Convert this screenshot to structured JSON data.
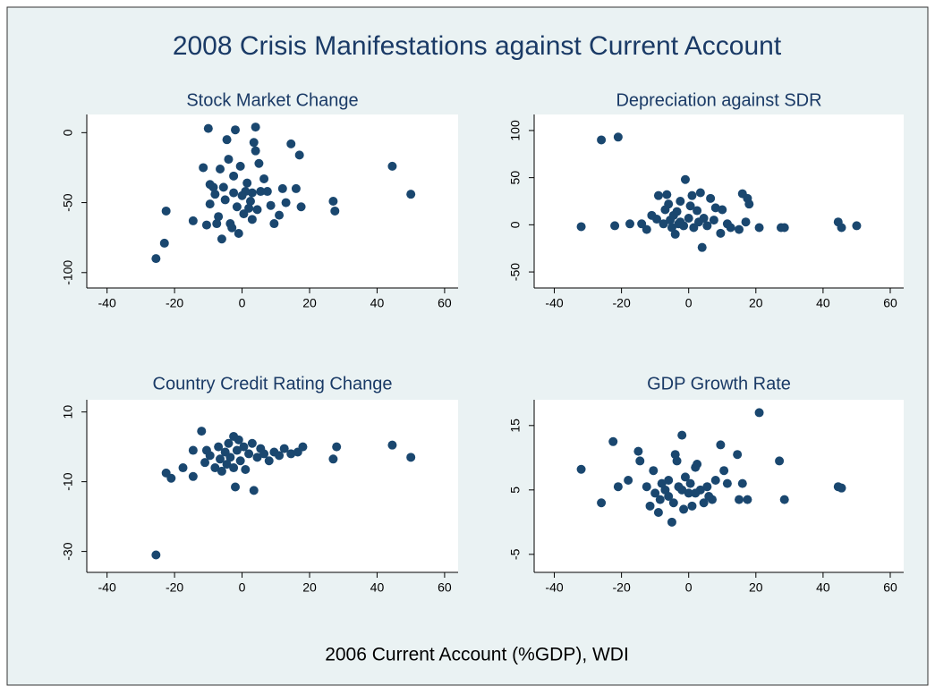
{
  "title": "2008 Crisis Manifestations against Current Account",
  "xlabel": "2006 Current Account (%GDP), WDI",
  "chart_data": [
    {
      "type": "scatter",
      "title": "Stock Market Change",
      "color": "#1a476f",
      "xlim": [
        -46,
        64
      ],
      "ylim": [
        -111,
        13
      ],
      "xticks": [
        -40,
        -20,
        0,
        20,
        40,
        60
      ],
      "yticks": [
        0,
        -50,
        -100
      ],
      "x": [
        -25.5,
        -23,
        -22.5,
        -14.5,
        -11.5,
        -10,
        -10.5,
        -9.5,
        -8.5,
        -9.5,
        -7.5,
        -7,
        -6.5,
        -6,
        -5.5,
        -5,
        -4.5,
        -4,
        -3.5,
        -2.5,
        -2,
        -2.5,
        -1.5,
        -1,
        -0.5,
        0.5,
        1,
        1.5,
        2.5,
        3,
        3.5,
        4,
        4,
        4.5,
        5,
        5.5,
        6.5,
        7.5,
        8.5,
        9.5,
        11,
        12,
        13,
        14.5,
        16,
        17,
        17.5,
        27,
        27.5,
        44.5,
        50,
        -8,
        -3,
        0,
        3,
        2
      ],
      "values": [
        -90,
        -79,
        -56,
        -63,
        -25,
        3,
        -66,
        -37,
        -39,
        -51,
        -65,
        -60,
        -26,
        -76,
        -39,
        -48,
        -5,
        -19,
        -65,
        -31,
        2,
        -43,
        -53,
        -72,
        -24,
        -58,
        -42,
        -36,
        -49,
        -62,
        -7,
        4,
        -13,
        -55,
        -22,
        -42,
        -33,
        -42,
        -52,
        -65,
        -59,
        -40,
        -50,
        -8,
        -40,
        -16,
        -53,
        -49,
        -56,
        -24,
        -44,
        -44,
        -68,
        -45,
        -43,
        -54
      ]
    },
    {
      "type": "scatter",
      "title": "Depreciation against SDR",
      "color": "#1a476f",
      "xlim": [
        -46,
        64
      ],
      "ylim": [
        -67,
        117
      ],
      "xticks": [
        -40,
        -20,
        0,
        20,
        40,
        60
      ],
      "yticks": [
        100,
        50,
        0,
        -50
      ],
      "x": [
        -32,
        -26,
        -21,
        -22,
        -17.5,
        -14,
        -12.5,
        -11,
        -9.5,
        -9,
        -7.5,
        -6.5,
        -6,
        -5.5,
        -5,
        -4.5,
        -4,
        -3.5,
        -3,
        -2.5,
        -1.5,
        -1,
        0,
        0.5,
        1,
        1.5,
        2.5,
        3.5,
        4,
        4.5,
        5.5,
        6.5,
        7.5,
        8,
        9.5,
        10,
        11.5,
        12.5,
        15,
        16,
        17,
        17.5,
        18,
        21,
        27.5,
        28.5,
        44.5,
        45.5,
        50,
        -7,
        -2.5,
        3
      ],
      "values": [
        -2,
        90,
        93,
        -1,
        1,
        1,
        -5,
        10,
        6,
        31,
        1,
        32,
        22,
        5,
        -3,
        10,
        -10,
        14,
        1,
        25,
        -1,
        48,
        7,
        20,
        31,
        -3,
        15,
        34,
        -24,
        7,
        -1,
        28,
        5,
        18,
        -9,
        16,
        1,
        -3,
        -5,
        33,
        3,
        28,
        22,
        -3,
        -3,
        -3,
        3,
        -3,
        -1,
        16,
        3,
        3
      ]
    },
    {
      "type": "scatter",
      "title": "Country Credit Rating Change",
      "color": "#1a476f",
      "xlim": [
        -46,
        64
      ],
      "ylim": [
        -36,
        13.5
      ],
      "xticks": [
        -40,
        -20,
        0,
        20,
        40,
        60
      ],
      "yticks": [
        10,
        -10,
        -30
      ],
      "x": [
        -25.5,
        -22.5,
        -21,
        -17.5,
        -14.5,
        -14.5,
        -12,
        -11,
        -10.5,
        -9.5,
        -8,
        -7,
        -6.5,
        -6,
        -5,
        -4.5,
        -4,
        -3.5,
        -2.5,
        -2.5,
        -2,
        -1.5,
        -1,
        -0.5,
        0.5,
        1,
        2,
        3,
        3.5,
        4.5,
        5.5,
        6.5,
        8,
        9.5,
        11,
        12.5,
        14.5,
        16.5,
        18,
        27,
        28,
        44.5,
        50
      ],
      "values": [
        -31,
        -7.5,
        -9,
        -6,
        -8.5,
        -1,
        4.5,
        -4.5,
        -1,
        -2.5,
        -6,
        0,
        -3.5,
        -7,
        -1.5,
        -5,
        1,
        -3,
        3,
        -6,
        -11.5,
        -1,
        2,
        -4,
        0,
        -6.5,
        -2,
        1,
        -12.5,
        -3,
        -0.5,
        -2,
        -4,
        -1.5,
        -2.5,
        -0.5,
        -2,
        -1.5,
        0,
        -3.5,
        0,
        0.5,
        -3
      ]
    },
    {
      "type": "scatter",
      "title": "GDP Growth Rate",
      "color": "#1a476f",
      "xlim": [
        -46,
        64
      ],
      "ylim": [
        -7.8,
        19
      ],
      "xticks": [
        -40,
        -20,
        0,
        20,
        40,
        60
      ],
      "yticks": [
        15,
        5,
        -5
      ],
      "x": [
        -32,
        -26,
        -22.5,
        -21,
        -18,
        -15,
        -14.5,
        -12.5,
        -11.5,
        -10.5,
        -10,
        -9,
        -8.5,
        -7,
        -6,
        -5,
        -4.5,
        -4,
        -3.5,
        -3,
        -2,
        -1.5,
        -1,
        0,
        0.5,
        1,
        2,
        2.5,
        3.5,
        4.5,
        5.5,
        7,
        8,
        9.5,
        10.5,
        11.5,
        14.5,
        15,
        16,
        17.5,
        21,
        27,
        28.5,
        44.5,
        45.5,
        -6,
        -2,
        2,
        6,
        -8
      ],
      "values": [
        8.2,
        3,
        12.5,
        5.5,
        6.5,
        11,
        9.5,
        5.5,
        2.5,
        8,
        4.5,
        1.5,
        3.5,
        5,
        6.5,
        0,
        3,
        10.5,
        9.5,
        5.5,
        13.5,
        2,
        7,
        4.5,
        6,
        2.5,
        8.5,
        9,
        5,
        3,
        5.5,
        3.5,
        6.5,
        12,
        8,
        6,
        10.5,
        3.5,
        6,
        3.5,
        17,
        9.5,
        3.5,
        5.5,
        5.3,
        4,
        5,
        4.5,
        4,
        6
      ]
    }
  ]
}
